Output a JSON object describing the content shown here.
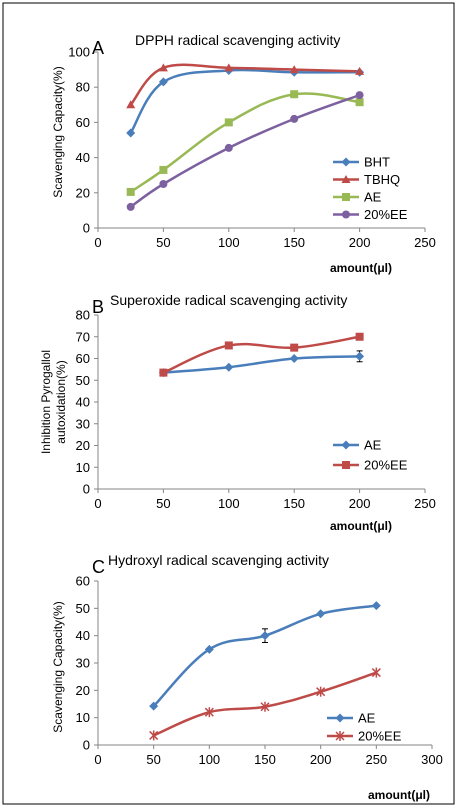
{
  "chart_data": [
    {
      "panel_letter": "A",
      "type": "line",
      "title": "DPPH radical scavenging activity",
      "xlabel": "amount(μl)",
      "ylabel": "Scavenging Capacity(%)",
      "xlim": [
        0,
        250
      ],
      "ylim": [
        0,
        100
      ],
      "xticks": [
        0,
        50,
        100,
        150,
        200,
        250
      ],
      "yticks": [
        0,
        20,
        40,
        60,
        80,
        100
      ],
      "grid": false,
      "legend_position": "lower-right",
      "x": [
        25,
        50,
        100,
        150,
        200
      ],
      "series": [
        {
          "name": "BHT",
          "values": [
            54,
            83,
            89.5,
            88.5,
            88.5
          ],
          "color": "#4a7ebb",
          "marker": "diamond"
        },
        {
          "name": "TBHQ",
          "values": [
            70,
            91,
            91,
            90,
            89
          ],
          "color": "#be4b48",
          "marker": "triangle"
        },
        {
          "name": "AE",
          "values": [
            20.5,
            33,
            60,
            76,
            71.5
          ],
          "color": "#98b954",
          "marker": "square"
        },
        {
          "name": "20%EE",
          "values": [
            12,
            25,
            45.5,
            62,
            75.5
          ],
          "color": "#7d60a0",
          "marker": "circle"
        }
      ]
    },
    {
      "panel_letter": "B",
      "type": "line",
      "title": "Superoxide radical scavenging activity",
      "xlabel": "amount(μl)",
      "ylabel_lines": [
        "Inhibition Pyrogallol",
        "autoxidation(%)"
      ],
      "xlim": [
        0,
        250
      ],
      "ylim": [
        0,
        80
      ],
      "xticks": [
        0,
        50,
        100,
        150,
        200,
        250
      ],
      "yticks": [
        0,
        10,
        20,
        30,
        40,
        50,
        60,
        70,
        80
      ],
      "grid": false,
      "legend_position": "lower-right",
      "x": [
        50,
        100,
        150,
        200
      ],
      "series": [
        {
          "name": "AE",
          "values": [
            53.5,
            56,
            60,
            61
          ],
          "color": "#4a7ebb",
          "marker": "diamond"
        },
        {
          "name": "20%EE",
          "values": [
            53.5,
            66,
            65,
            70
          ],
          "color": "#be4b48",
          "marker": "square"
        }
      ]
    },
    {
      "panel_letter": "C",
      "type": "line",
      "title": "Hydroxyl radical scavenging activity",
      "xlabel": "amount(μl)",
      "ylabel": "Scavenging Capacity(%)",
      "xlim": [
        0,
        300
      ],
      "ylim": [
        0,
        60
      ],
      "xticks": [
        0,
        50,
        100,
        150,
        200,
        250,
        300
      ],
      "yticks": [
        0,
        10,
        20,
        30,
        40,
        50,
        60
      ],
      "grid": false,
      "legend_position": "lower-right",
      "x": [
        50,
        100,
        150,
        200,
        250
      ],
      "series": [
        {
          "name": "AE",
          "values": [
            14.2,
            35,
            40,
            48,
            51
          ],
          "color": "#4a7ebb",
          "marker": "diamond"
        },
        {
          "name": "20%EE",
          "values": [
            3.5,
            12,
            14,
            19.5,
            26.5
          ],
          "color": "#be4b48",
          "marker": "star"
        }
      ]
    }
  ]
}
